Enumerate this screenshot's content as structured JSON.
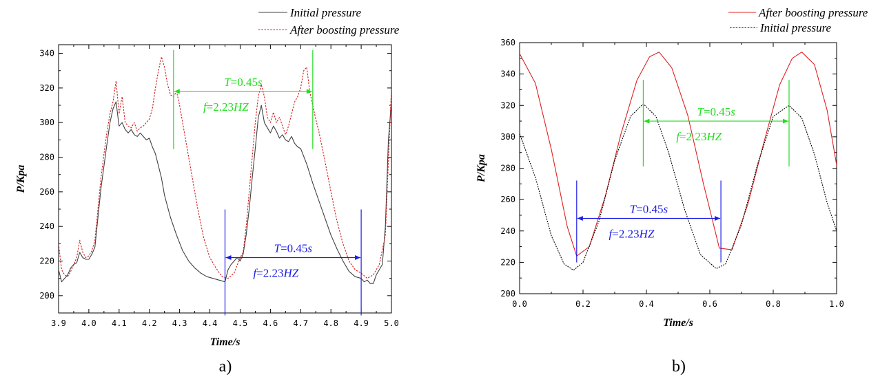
{
  "chart_data": [
    {
      "type": "line",
      "panel_label": "a)",
      "xlabel": "Time/s",
      "ylabel": "P/Kpa",
      "xlim": [
        3.9,
        5.0
      ],
      "ylim": [
        190,
        345
      ],
      "xticks": [
        "3.9",
        "4.0",
        "4.1",
        "4.2",
        "4.3",
        "4.4",
        "4.5",
        "4.6",
        "4.7",
        "4.8",
        "4.9",
        "5.0"
      ],
      "yticks": [
        "200",
        "220",
        "240",
        "260",
        "280",
        "300",
        "320",
        "340"
      ],
      "legend_position": "top-right",
      "series": [
        {
          "name": "Initial pressure",
          "color": "#404040",
          "style": "solid",
          "x": [
            3.9,
            3.91,
            3.92,
            3.93,
            3.94,
            3.95,
            3.96,
            3.97,
            3.98,
            3.99,
            4.0,
            4.01,
            4.02,
            4.03,
            4.04,
            4.05,
            4.06,
            4.07,
            4.08,
            4.09,
            4.1,
            4.11,
            4.12,
            4.13,
            4.14,
            4.15,
            4.16,
            4.17,
            4.18,
            4.19,
            4.2,
            4.21,
            4.22,
            4.23,
            4.24,
            4.25,
            4.27,
            4.29,
            4.31,
            4.33,
            4.35,
            4.37,
            4.39,
            4.41,
            4.43,
            4.45,
            4.46,
            4.47,
            4.48,
            4.49,
            4.5,
            4.51,
            4.52,
            4.53,
            4.54,
            4.55,
            4.56,
            4.57,
            4.58,
            4.59,
            4.6,
            4.61,
            4.62,
            4.63,
            4.64,
            4.65,
            4.66,
            4.67,
            4.68,
            4.69,
            4.7,
            4.72,
            4.74,
            4.76,
            4.78,
            4.8,
            4.82,
            4.84,
            4.86,
            4.88,
            4.9,
            4.91,
            4.92,
            4.93,
            4.94,
            4.95,
            4.96,
            4.97,
            4.98,
            4.99,
            5.0
          ],
          "y": [
            215,
            208,
            210,
            212,
            216,
            218,
            219,
            225,
            222,
            221,
            221,
            224,
            228,
            245,
            262,
            275,
            288,
            300,
            308,
            312,
            298,
            300,
            296,
            294,
            296,
            293,
            292,
            294,
            292,
            290,
            291,
            286,
            282,
            275,
            268,
            258,
            245,
            235,
            226,
            220,
            216,
            213,
            211,
            210,
            209,
            208,
            215,
            218,
            220,
            222,
            220,
            224,
            235,
            250,
            268,
            285,
            303,
            310,
            300,
            297,
            294,
            298,
            295,
            291,
            293,
            290,
            289,
            292,
            288,
            286,
            285,
            276,
            265,
            255,
            245,
            235,
            227,
            220,
            214,
            211,
            210,
            208,
            209,
            207,
            207,
            212,
            215,
            218,
            240,
            290,
            312
          ]
        },
        {
          "name": "After boosting pressure",
          "color": "#d22020",
          "style": "dashed",
          "x": [
            3.9,
            3.91,
            3.92,
            3.93,
            3.94,
            3.95,
            3.96,
            3.97,
            3.98,
            3.99,
            4.0,
            4.01,
            4.02,
            4.03,
            4.04,
            4.05,
            4.06,
            4.07,
            4.08,
            4.09,
            4.1,
            4.11,
            4.12,
            4.13,
            4.14,
            4.15,
            4.16,
            4.17,
            4.18,
            4.19,
            4.2,
            4.21,
            4.22,
            4.23,
            4.24,
            4.25,
            4.26,
            4.27,
            4.28,
            4.29,
            4.3,
            4.32,
            4.34,
            4.36,
            4.38,
            4.4,
            4.42,
            4.44,
            4.46,
            4.48,
            4.5,
            4.51,
            4.52,
            4.53,
            4.54,
            4.55,
            4.56,
            4.57,
            4.58,
            4.59,
            4.6,
            4.61,
            4.62,
            4.63,
            4.64,
            4.65,
            4.66,
            4.67,
            4.68,
            4.69,
            4.7,
            4.71,
            4.72,
            4.73,
            4.74,
            4.75,
            4.76,
            4.78,
            4.8,
            4.82,
            4.84,
            4.86,
            4.88,
            4.9,
            4.92,
            4.94,
            4.96,
            4.98,
            5.0
          ],
          "y": [
            230,
            215,
            212,
            211,
            214,
            218,
            222,
            232,
            225,
            222,
            223,
            226,
            232,
            250,
            268,
            282,
            295,
            305,
            312,
            324,
            305,
            315,
            300,
            298,
            297,
            300,
            295,
            297,
            298,
            300,
            302,
            308,
            320,
            330,
            338,
            332,
            322,
            316,
            315,
            318,
            310,
            290,
            270,
            250,
            233,
            222,
            216,
            211,
            210,
            213,
            222,
            225,
            240,
            260,
            280,
            300,
            315,
            322,
            315,
            303,
            300,
            306,
            300,
            303,
            298,
            293,
            298,
            305,
            312,
            315,
            320,
            330,
            332,
            318,
            310,
            302,
            295,
            278,
            260,
            243,
            230,
            220,
            215,
            213,
            210,
            212,
            218,
            235,
            320
          ]
        }
      ],
      "annotations": [
        {
          "text": "T=0.45s",
          "subtext": "f=2.23HZ",
          "color": "#22dd22",
          "x_start": 4.28,
          "x_end": 4.74,
          "y": 318
        },
        {
          "text": "T=0.45s",
          "subtext": "f=2.23HZ",
          "color": "#1a1ae6",
          "x_start": 4.45,
          "x_end": 4.9,
          "y": 222
        }
      ]
    },
    {
      "type": "line",
      "panel_label": "b)",
      "xlabel": "Time/s",
      "ylabel": "P/Kpa",
      "xlim": [
        0.0,
        1.0
      ],
      "ylim": [
        200,
        360
      ],
      "xticks": [
        "0.0",
        "0.2",
        "0.4",
        "0.6",
        "0.8",
        "1.0"
      ],
      "yticks": [
        "200",
        "220",
        "240",
        "260",
        "280",
        "300",
        "320",
        "340",
        "360"
      ],
      "legend_position": "top-right",
      "series": [
        {
          "name": "After boosting pressure",
          "color": "#e02020",
          "style": "solid",
          "x": [
            0.0,
            0.05,
            0.1,
            0.15,
            0.18,
            0.22,
            0.27,
            0.32,
            0.37,
            0.41,
            0.44,
            0.48,
            0.53,
            0.58,
            0.63,
            0.67,
            0.72,
            0.77,
            0.82,
            0.86,
            0.89,
            0.93,
            0.97,
            1.0
          ],
          "y": [
            353,
            334,
            292,
            243,
            224,
            230,
            262,
            302,
            336,
            351,
            354,
            344,
            314,
            270,
            229,
            228,
            257,
            296,
            333,
            350,
            354,
            346,
            317,
            282
          ]
        },
        {
          "name": "Initial pressure",
          "color": "#000000",
          "style": "dashed",
          "x": [
            0.0,
            0.05,
            0.1,
            0.14,
            0.17,
            0.2,
            0.25,
            0.3,
            0.35,
            0.39,
            0.43,
            0.47,
            0.52,
            0.57,
            0.62,
            0.65,
            0.7,
            0.75,
            0.8,
            0.85,
            0.89,
            0.93,
            0.97,
            1.0
          ],
          "y": [
            302,
            274,
            237,
            219,
            215,
            220,
            246,
            285,
            313,
            321,
            313,
            290,
            254,
            225,
            216,
            219,
            244,
            282,
            313,
            320,
            312,
            289,
            258,
            240
          ]
        }
      ],
      "annotations": [
        {
          "text": "T=0.45s",
          "subtext": "f=2.23HZ",
          "color": "#22dd22",
          "x_start": 0.39,
          "x_end": 0.85,
          "y": 310
        },
        {
          "text": "T=0.45s",
          "subtext": "f=2.23HZ",
          "color": "#1a1ae6",
          "x_start": 0.18,
          "x_end": 0.635,
          "y": 248
        }
      ]
    }
  ]
}
